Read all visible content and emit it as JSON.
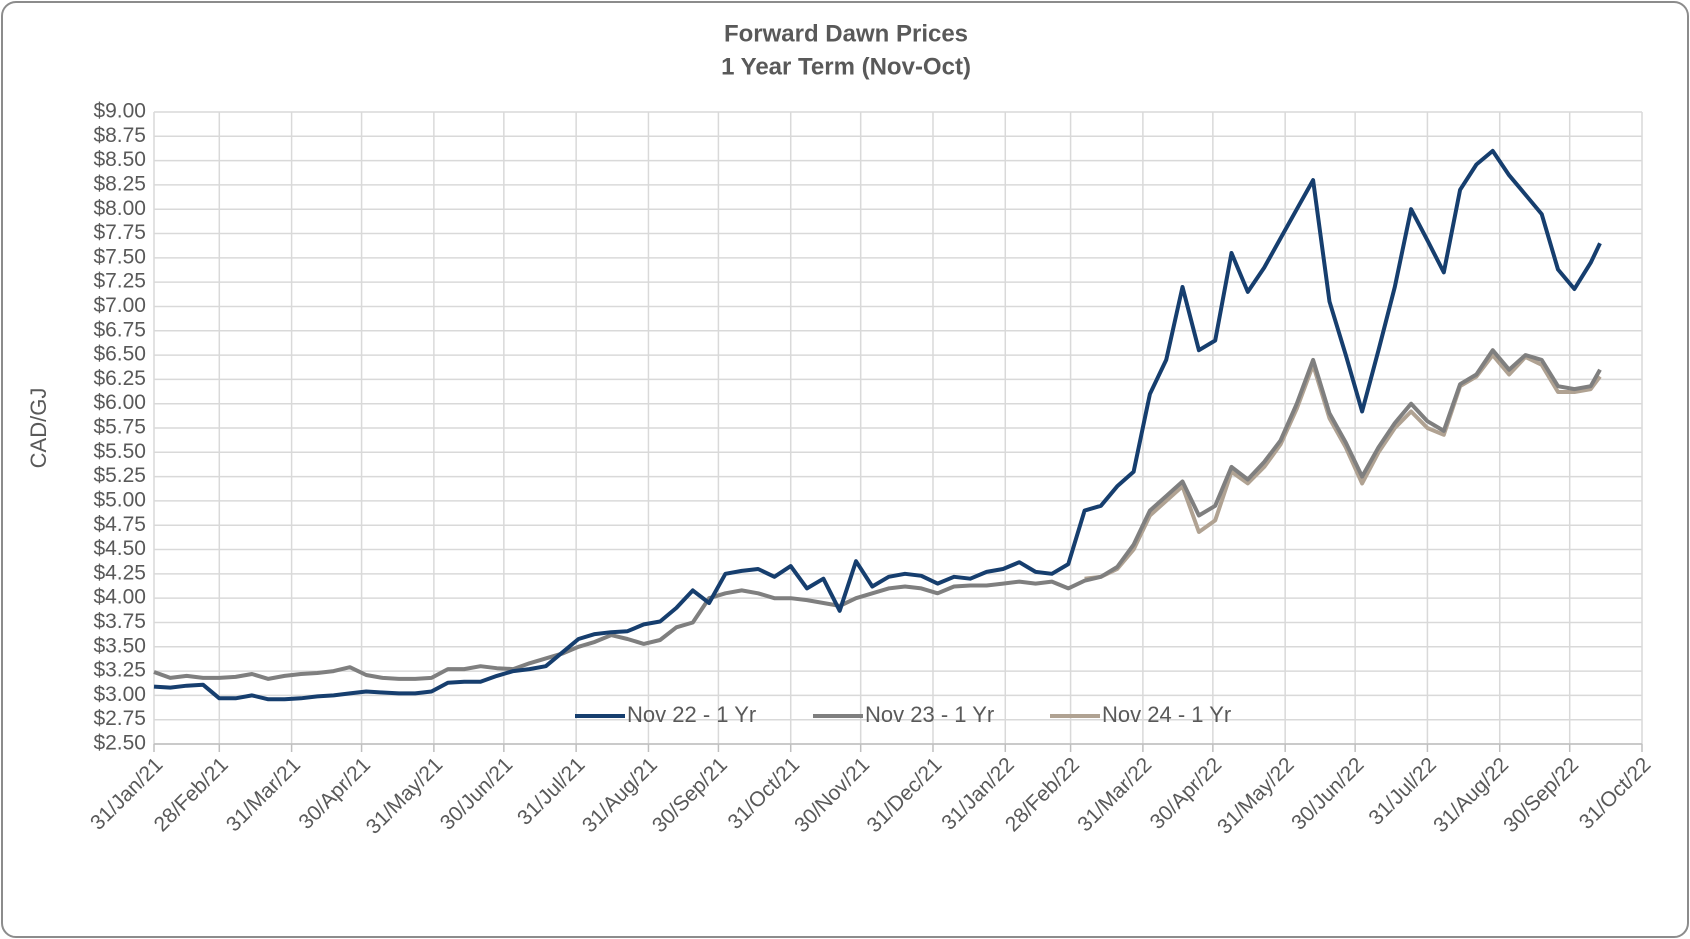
{
  "chart_data": {
    "type": "line",
    "title": "Forward Dawn Prices",
    "subtitle": "1 Year Term (Nov-Oct)",
    "y_label": "CAD/GJ",
    "x": [
      "2021-01-31",
      "2021-02-07",
      "2021-02-14",
      "2021-02-21",
      "2021-02-28",
      "2021-03-07",
      "2021-03-14",
      "2021-03-21",
      "2021-03-28",
      "2021-04-04",
      "2021-04-11",
      "2021-04-18",
      "2021-04-25",
      "2021-05-02",
      "2021-05-09",
      "2021-05-16",
      "2021-05-23",
      "2021-05-30",
      "2021-06-06",
      "2021-06-13",
      "2021-06-20",
      "2021-06-27",
      "2021-07-04",
      "2021-07-11",
      "2021-07-18",
      "2021-07-25",
      "2021-08-01",
      "2021-08-08",
      "2021-08-15",
      "2021-08-22",
      "2021-08-29",
      "2021-09-05",
      "2021-09-12",
      "2021-09-19",
      "2021-09-26",
      "2021-10-03",
      "2021-10-10",
      "2021-10-17",
      "2021-10-24",
      "2021-10-31",
      "2021-11-07",
      "2021-11-14",
      "2021-11-21",
      "2021-11-28",
      "2021-12-05",
      "2021-12-12",
      "2021-12-19",
      "2021-12-26",
      "2022-01-02",
      "2022-01-09",
      "2022-01-16",
      "2022-01-23",
      "2022-01-30",
      "2022-02-06",
      "2022-02-13",
      "2022-02-20",
      "2022-02-27",
      "2022-03-06",
      "2022-03-13",
      "2022-03-20",
      "2022-03-27",
      "2022-04-03",
      "2022-04-10",
      "2022-04-17",
      "2022-04-24",
      "2022-05-01",
      "2022-05-08",
      "2022-05-15",
      "2022-05-22",
      "2022-05-29",
      "2022-06-05",
      "2022-06-12",
      "2022-06-19",
      "2022-06-26",
      "2022-07-03",
      "2022-07-10",
      "2022-07-17",
      "2022-07-24",
      "2022-07-31",
      "2022-08-07",
      "2022-08-14",
      "2022-08-21",
      "2022-08-28",
      "2022-09-04",
      "2022-09-11",
      "2022-09-18",
      "2022-09-25",
      "2022-10-02",
      "2022-10-09",
      "2022-10-13"
    ],
    "series": [
      {
        "name": "Nov 22 - 1 Yr",
        "color": "#163e6e",
        "values": [
          3.09,
          3.08,
          3.1,
          3.11,
          2.97,
          2.97,
          3.0,
          2.96,
          2.96,
          2.97,
          2.99,
          3.0,
          3.02,
          3.04,
          3.03,
          3.02,
          3.02,
          3.04,
          3.13,
          3.14,
          3.14,
          3.2,
          3.25,
          3.27,
          3.3,
          3.44,
          3.58,
          3.63,
          3.65,
          3.66,
          3.73,
          3.76,
          3.9,
          4.08,
          3.95,
          4.25,
          4.28,
          4.3,
          4.22,
          4.33,
          4.1,
          4.2,
          3.87,
          4.38,
          4.12,
          4.22,
          4.25,
          4.23,
          4.15,
          4.22,
          4.2,
          4.27,
          4.3,
          4.37,
          4.27,
          4.25,
          4.35,
          4.9,
          4.95,
          5.15,
          5.3,
          6.1,
          6.45,
          7.2,
          6.55,
          6.65,
          7.55,
          7.15,
          7.4,
          7.7,
          8.0,
          8.3,
          7.05,
          6.5,
          5.92,
          6.55,
          7.2,
          8.0,
          7.68,
          7.35,
          8.2,
          8.46,
          8.6,
          8.35,
          8.15,
          7.95,
          7.38,
          7.18,
          7.45,
          7.65
        ]
      },
      {
        "name": "Nov 23 - 1 Yr",
        "color": "#7f7f7f",
        "values": [
          3.24,
          3.18,
          3.2,
          3.18,
          3.18,
          3.19,
          3.22,
          3.17,
          3.2,
          3.22,
          3.23,
          3.25,
          3.29,
          3.21,
          3.18,
          3.17,
          3.17,
          3.18,
          3.27,
          3.27,
          3.3,
          3.28,
          3.27,
          3.33,
          3.38,
          3.43,
          3.5,
          3.55,
          3.62,
          3.58,
          3.53,
          3.57,
          3.7,
          3.75,
          4.0,
          4.05,
          4.08,
          4.05,
          4.0,
          4.0,
          3.98,
          3.95,
          3.92,
          4.0,
          4.05,
          4.1,
          4.12,
          4.1,
          4.05,
          4.12,
          4.13,
          4.13,
          4.15,
          4.17,
          4.15,
          4.17,
          4.1,
          4.18,
          4.22,
          4.32,
          4.55,
          4.9,
          5.05,
          5.2,
          4.85,
          4.95,
          5.35,
          5.22,
          5.4,
          5.62,
          6.0,
          6.45,
          5.9,
          5.6,
          5.25,
          5.55,
          5.8,
          6.0,
          5.82,
          5.72,
          6.2,
          6.3,
          6.55,
          6.35,
          6.5,
          6.45,
          6.18,
          6.15,
          6.18,
          6.35
        ]
      },
      {
        "name": "Nov 24 - 1 Yr",
        "color": "#b0a292",
        "values": [
          null,
          null,
          null,
          null,
          null,
          null,
          null,
          null,
          null,
          null,
          null,
          null,
          null,
          null,
          null,
          null,
          null,
          null,
          null,
          null,
          null,
          null,
          null,
          null,
          null,
          null,
          null,
          null,
          null,
          null,
          null,
          null,
          null,
          null,
          null,
          null,
          null,
          null,
          null,
          null,
          null,
          null,
          null,
          null,
          null,
          null,
          null,
          null,
          null,
          null,
          null,
          null,
          null,
          null,
          null,
          null,
          null,
          4.2,
          4.22,
          4.3,
          4.5,
          4.85,
          5.0,
          5.15,
          4.68,
          4.8,
          5.3,
          5.18,
          5.35,
          5.58,
          5.95,
          6.4,
          5.85,
          5.55,
          5.18,
          5.5,
          5.75,
          5.92,
          5.75,
          5.68,
          6.18,
          6.28,
          6.5,
          6.3,
          6.48,
          6.4,
          6.12,
          6.12,
          6.15,
          6.28
        ]
      }
    ],
    "xlim": [
      "2021-01-31",
      "2022-10-31"
    ],
    "xticks": [
      {
        "value": "2021-01-31",
        "label": "31/Jan/21"
      },
      {
        "value": "2021-02-28",
        "label": "28/Feb/21"
      },
      {
        "value": "2021-03-31",
        "label": "31/Mar/21"
      },
      {
        "value": "2021-04-30",
        "label": "30/Apr/21"
      },
      {
        "value": "2021-05-31",
        "label": "31/May/21"
      },
      {
        "value": "2021-06-30",
        "label": "30/Jun/21"
      },
      {
        "value": "2021-07-31",
        "label": "31/Jul/21"
      },
      {
        "value": "2021-08-31",
        "label": "31/Aug/21"
      },
      {
        "value": "2021-09-30",
        "label": "30/Sep/21"
      },
      {
        "value": "2021-10-31",
        "label": "31/Oct/21"
      },
      {
        "value": "2021-11-30",
        "label": "30/Nov/21"
      },
      {
        "value": "2021-12-31",
        "label": "31/Dec/21"
      },
      {
        "value": "2022-01-31",
        "label": "31/Jan/22"
      },
      {
        "value": "2022-02-28",
        "label": "28/Feb/22"
      },
      {
        "value": "2022-03-31",
        "label": "31/Mar/22"
      },
      {
        "value": "2022-04-30",
        "label": "30/Apr/22"
      },
      {
        "value": "2022-05-31",
        "label": "31/May/22"
      },
      {
        "value": "2022-06-30",
        "label": "30/Jun/22"
      },
      {
        "value": "2022-07-31",
        "label": "31/Jul/22"
      },
      {
        "value": "2022-08-31",
        "label": "31/Aug/22"
      },
      {
        "value": "2022-09-30",
        "label": "30/Sep/22"
      },
      {
        "value": "2022-10-31",
        "label": "31/Oct/22"
      }
    ],
    "ylim": [
      2.5,
      9.0
    ],
    "yticks": [
      {
        "value": 2.5,
        "label": "$2.50"
      },
      {
        "value": 2.75,
        "label": "$2.75"
      },
      {
        "value": 3.0,
        "label": "$3.00"
      },
      {
        "value": 3.25,
        "label": "$3.25"
      },
      {
        "value": 3.5,
        "label": "$3.50"
      },
      {
        "value": 3.75,
        "label": "$3.75"
      },
      {
        "value": 4.0,
        "label": "$4.00"
      },
      {
        "value": 4.25,
        "label": "$4.25"
      },
      {
        "value": 4.5,
        "label": "$4.50"
      },
      {
        "value": 4.75,
        "label": "$4.75"
      },
      {
        "value": 5.0,
        "label": "$5.00"
      },
      {
        "value": 5.25,
        "label": "$5.25"
      },
      {
        "value": 5.5,
        "label": "$5.50"
      },
      {
        "value": 5.75,
        "label": "$5.75"
      },
      {
        "value": 6.0,
        "label": "$6.00"
      },
      {
        "value": 6.25,
        "label": "$6.25"
      },
      {
        "value": 6.5,
        "label": "$6.50"
      },
      {
        "value": 6.75,
        "label": "$6.75"
      },
      {
        "value": 7.0,
        "label": "$7.00"
      },
      {
        "value": 7.25,
        "label": "$7.25"
      },
      {
        "value": 7.5,
        "label": "$7.50"
      },
      {
        "value": 7.75,
        "label": "$7.75"
      },
      {
        "value": 8.0,
        "label": "$8.00"
      },
      {
        "value": 8.25,
        "label": "$8.25"
      },
      {
        "value": 8.5,
        "label": "$8.50"
      },
      {
        "value": 8.75,
        "label": "$8.75"
      },
      {
        "value": 9.0,
        "label": "$9.00"
      }
    ],
    "grid": true,
    "legend": "bottom"
  }
}
